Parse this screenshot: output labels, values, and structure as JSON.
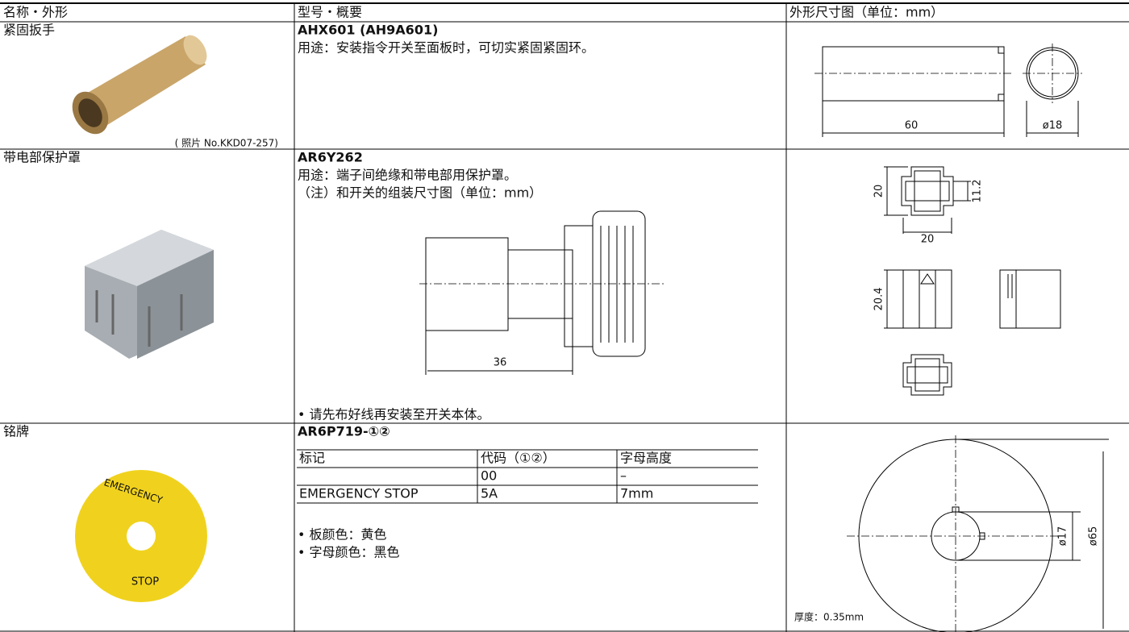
{
  "table": {
    "headers": [
      "名称・外形",
      "型号・概要",
      "外形尺寸图（单位：mm）"
    ],
    "rows": [
      {
        "name": "紧固扳手",
        "photo_caption": "( 照片 No.KKD07-257)",
        "model": "AHX601 (AH9A601)",
        "lines": [
          "用途：安装指令开关至面板时，可切实紧固紧固环。"
        ],
        "dims": [
          "60",
          "ø18"
        ]
      },
      {
        "name": "带电部保护罩",
        "model": "AR6Y262",
        "lines": [
          "用途：端子间绝缘和带电部用保护罩。",
          "（注）和开关的组装尺寸图（单位：mm）"
        ],
        "assembly_dim": "36",
        "note": "• 请先布好线再安装至开关本体。",
        "dims": [
          "20",
          "11.2",
          "20",
          "20.4"
        ]
      },
      {
        "name": "铭牌",
        "plate_text": [
          "EMERGENCY",
          "STOP"
        ],
        "model": "AR6P719-①②",
        "subtable": {
          "headers": [
            "标记",
            "代码（①②）",
            "字母高度"
          ],
          "rows": [
            [
              null,
              "00",
              "–"
            ],
            [
              "EMERGENCY STOP",
              "5A",
              "7mm"
            ]
          ]
        },
        "notes": [
          "• 板颜色：黄色",
          "• 字母颜色：黑色"
        ],
        "dims": [
          "ø17",
          "ø65"
        ],
        "thickness": "厚度：0.35mm"
      }
    ]
  }
}
